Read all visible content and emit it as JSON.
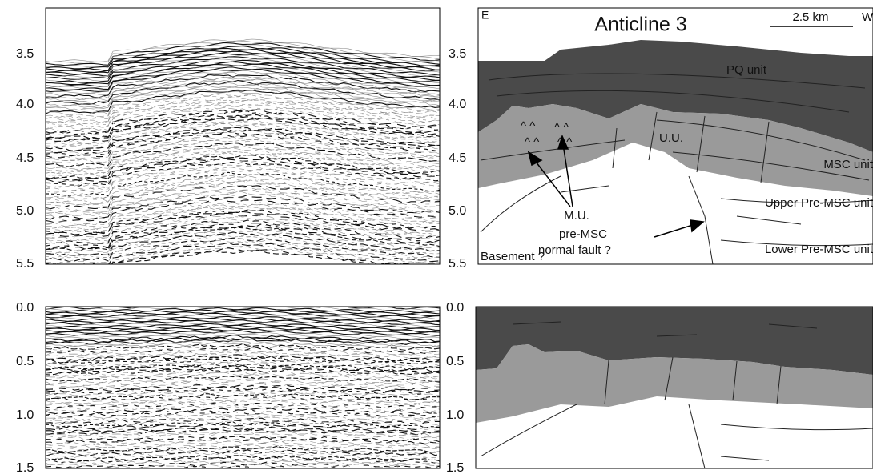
{
  "panels": [
    {
      "id": "seismic-top",
      "yticks": [
        "3.5",
        "4.0",
        "4.5",
        "5.0",
        "5.5"
      ]
    },
    {
      "id": "interpretation-top",
      "yticks": [
        "3.5",
        "4.0",
        "4.5",
        "5.0",
        "5.5"
      ]
    },
    {
      "id": "seismic-bottom",
      "yticks": [
        "0.0",
        "0.5",
        "1.0",
        "1.5"
      ]
    },
    {
      "id": "interpretation-bottom",
      "yticks": [
        "0.0",
        "0.5",
        "1.0",
        "1.5"
      ]
    }
  ],
  "header": {
    "east": "E",
    "west": "W",
    "title": "Anticline 3",
    "scale": "2.5 km"
  },
  "labels": {
    "pq": "PQ unit",
    "uu": "U.U.",
    "msc": "MSC unit",
    "upper": "Upper Pre-MSC unit",
    "lower": "Lower Pre-MSC unit",
    "mu": "M.U.",
    "fault1": "pre-MSC",
    "fault2": "normal fault ?",
    "basement": "Basement ?"
  }
}
